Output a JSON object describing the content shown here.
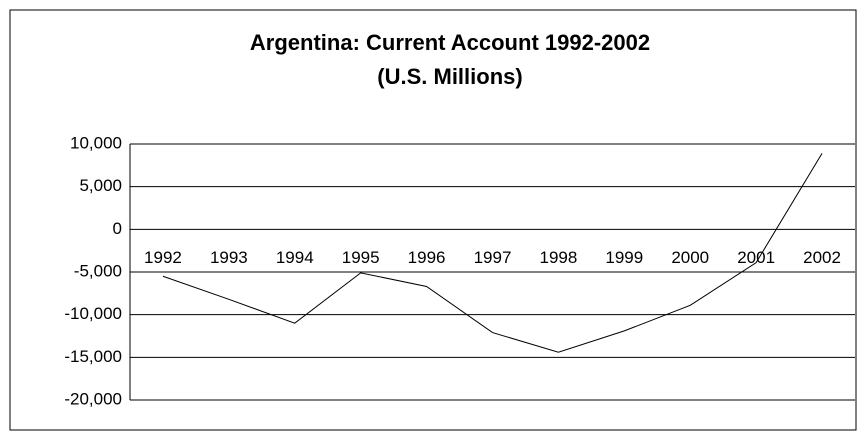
{
  "chart_data": {
    "type": "line",
    "title": "Argentina: Current Account 1992-2002",
    "subtitle": "(U.S. Millions)",
    "categories": [
      "1992",
      "1993",
      "1994",
      "1995",
      "1996",
      "1997",
      "1998",
      "1999",
      "2000",
      "2001",
      "2002"
    ],
    "values": [
      -5500,
      -8200,
      -11000,
      -5100,
      -6700,
      -12100,
      -14400,
      -11900,
      -8900,
      -3900,
      8900
    ],
    "color": "#000000",
    "ylim": [
      -20000,
      10000
    ],
    "yticks": [
      {
        "value": -20000,
        "label": "-20,000"
      },
      {
        "value": -15000,
        "label": "-15,000"
      },
      {
        "value": -10000,
        "label": "-10,000"
      },
      {
        "value": -5000,
        "label": "-5,000"
      },
      0,
      {
        "value": 5000,
        "label": "5,000"
      },
      {
        "value": 10000,
        "label": "10,000"
      }
    ],
    "grid": true
  }
}
